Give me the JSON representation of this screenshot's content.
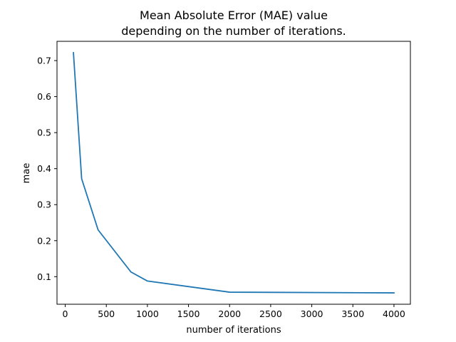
{
  "chart_data": {
    "type": "line",
    "title_line1": "Mean Absolute Error (MAE) value",
    "title_line2": "depending on the number of iterations.",
    "xlabel": "number of iterations",
    "ylabel": "mae",
    "xlim": [
      -100,
      4200
    ],
    "ylim": [
      0.0235,
      0.7535
    ],
    "xticks": [
      0,
      500,
      1000,
      1500,
      2000,
      2500,
      3000,
      3500,
      4000
    ],
    "yticks": [
      0.1,
      0.2,
      0.3,
      0.4,
      0.5,
      0.6,
      0.7
    ],
    "grid": false,
    "series": [
      {
        "color": "#1f77b4",
        "x": [
          100,
          200,
          400,
          800,
          1000,
          2000,
          4000
        ],
        "y": [
          0.722,
          0.372,
          0.23,
          0.113,
          0.088,
          0.057,
          0.055
        ]
      }
    ]
  }
}
